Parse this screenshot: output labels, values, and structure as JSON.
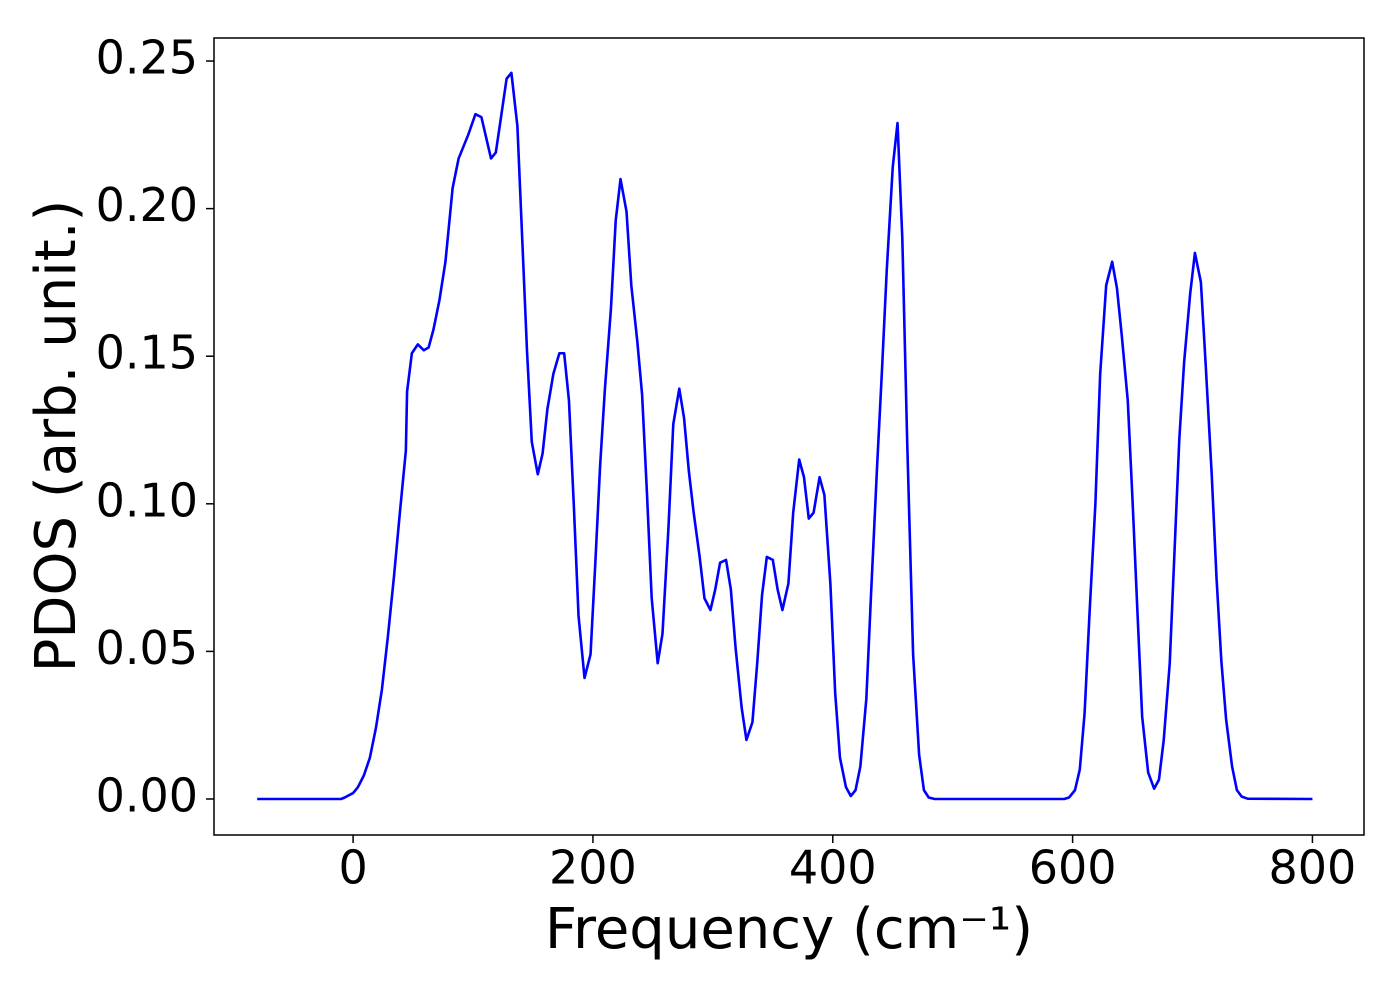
{
  "chart_data": {
    "type": "line",
    "xlabel": "Frequency (cm⁻¹)",
    "ylabel": "PDOS (arb. unit.)",
    "xlim": [
      -116,
      843
    ],
    "ylim": [
      -0.0122,
      0.2578
    ],
    "xticks": [
      0,
      200,
      400,
      600,
      800
    ],
    "yticks": [
      {
        "value": 0,
        "label": "0.00"
      },
      0.05,
      {
        "value": 0.1,
        "label": "0.10"
      },
      0.15,
      {
        "value": 0.2,
        "label": "0.20"
      },
      0.25
    ],
    "grid": false,
    "series": [
      {
        "color": "#0000ff",
        "x": [
          -80,
          -10,
          -7,
          0,
          4,
          9,
          14,
          19,
          24,
          29,
          34,
          39,
          44,
          45,
          49,
          54,
          59,
          63,
          67,
          72,
          77,
          83,
          88,
          96,
          102,
          107,
          115,
          119,
          123,
          128,
          132,
          137,
          141,
          145,
          149,
          154,
          158,
          162,
          167,
          172,
          176,
          180,
          184,
          188,
          193,
          198,
          202,
          206,
          210,
          215,
          219,
          223,
          228,
          232,
          237,
          241,
          245,
          249,
          254,
          258,
          263,
          267,
          272,
          276,
          280,
          284,
          289,
          293,
          298,
          302,
          306,
          311,
          315,
          319,
          324,
          328,
          333,
          337,
          341,
          345,
          350,
          354,
          358,
          363,
          367,
          372,
          376,
          380,
          384,
          389,
          393,
          398,
          402,
          406,
          411,
          415,
          419,
          423,
          428,
          432,
          437,
          441,
          445,
          450,
          454,
          458,
          462,
          467,
          472,
          476,
          480,
          485,
          593,
          597,
          602,
          606,
          610,
          614,
          619,
          623,
          628,
          633,
          637,
          641,
          646,
          650,
          654,
          658,
          663,
          668,
          672,
          676,
          681,
          685,
          689,
          693,
          698,
          702,
          707,
          711,
          716,
          720,
          724,
          728,
          733,
          737,
          741,
          746,
          800
        ],
        "values": [
          0,
          0,
          0.0005,
          0.002,
          0.004,
          0.008,
          0.014,
          0.024,
          0.037,
          0.055,
          0.075,
          0.097,
          0.118,
          0.138,
          0.151,
          0.154,
          0.152,
          0.153,
          0.159,
          0.169,
          0.182,
          0.207,
          0.217,
          0.225,
          0.232,
          0.231,
          0.217,
          0.219,
          0.23,
          0.244,
          0.246,
          0.228,
          0.19,
          0.152,
          0.121,
          0.11,
          0.117,
          0.132,
          0.144,
          0.151,
          0.151,
          0.135,
          0.1,
          0.062,
          0.041,
          0.049,
          0.08,
          0.113,
          0.139,
          0.166,
          0.196,
          0.21,
          0.199,
          0.174,
          0.155,
          0.137,
          0.104,
          0.068,
          0.046,
          0.056,
          0.092,
          0.127,
          0.139,
          0.129,
          0.111,
          0.097,
          0.082,
          0.068,
          0.064,
          0.071,
          0.08,
          0.081,
          0.071,
          0.051,
          0.031,
          0.02,
          0.026,
          0.046,
          0.069,
          0.082,
          0.081,
          0.071,
          0.064,
          0.073,
          0.097,
          0.115,
          0.109,
          0.095,
          0.097,
          0.109,
          0.103,
          0.073,
          0.036,
          0.014,
          0.004,
          0.001,
          0.003,
          0.011,
          0.034,
          0.07,
          0.113,
          0.145,
          0.179,
          0.214,
          0.229,
          0.19,
          0.122,
          0.049,
          0.015,
          0.003,
          0.0005,
          0,
          0,
          0.0005,
          0.003,
          0.01,
          0.029,
          0.062,
          0.1,
          0.144,
          0.174,
          0.182,
          0.173,
          0.157,
          0.135,
          0.101,
          0.064,
          0.028,
          0.009,
          0.0035,
          0.0065,
          0.02,
          0.046,
          0.084,
          0.122,
          0.148,
          0.171,
          0.185,
          0.175,
          0.147,
          0.11,
          0.075,
          0.047,
          0.027,
          0.011,
          0.003,
          0.0008,
          0.0001,
          0
        ]
      }
    ]
  }
}
